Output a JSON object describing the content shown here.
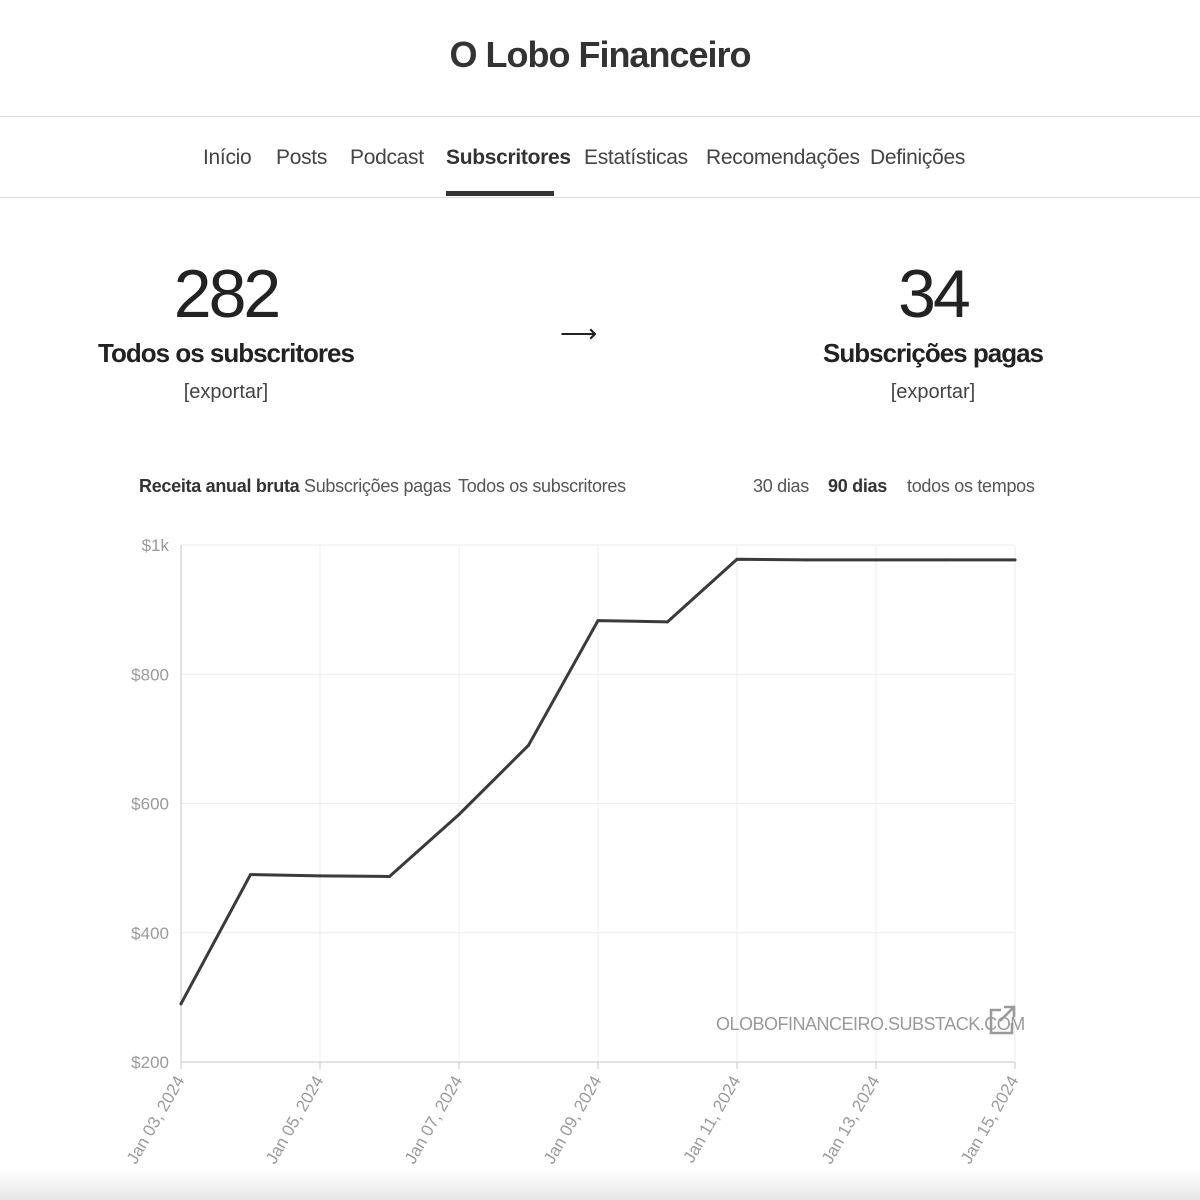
{
  "site": {
    "title": "O Lobo Financeiro"
  },
  "nav": {
    "items": [
      {
        "label": "Início"
      },
      {
        "label": "Posts"
      },
      {
        "label": "Podcast"
      },
      {
        "label": "Subscritores",
        "active": true
      },
      {
        "label": "Estatísticas"
      },
      {
        "label": "Recomendações"
      },
      {
        "label": "Definições"
      }
    ]
  },
  "stats": {
    "all": {
      "value": "282",
      "label": "Todos os subscritores",
      "export": "[exportar]"
    },
    "arrow": "⟶",
    "paid": {
      "value": "34",
      "label": "Subscrições pagas",
      "export": "[exportar]"
    }
  },
  "metric_tabs": [
    {
      "label": "Receita anual bruta",
      "active": true
    },
    {
      "label": "Subscrições pagas"
    },
    {
      "label": "Todos os subscritores"
    }
  ],
  "range_tabs": [
    {
      "label": "30 dias"
    },
    {
      "label": "90 dias",
      "active": true
    },
    {
      "label": "todos os tempos"
    }
  ],
  "chart_data": {
    "type": "line",
    "x_tick_labels": [
      "Jan 03, 2024",
      "Jan 05, 2024",
      "Jan 07, 2024",
      "Jan 09, 2024",
      "Jan 11, 2024",
      "Jan 13, 2024",
      "Jan 15, 2024"
    ],
    "y_tick_labels": [
      "$200",
      "$400",
      "$600",
      "$800",
      "$1k"
    ],
    "y_ticks": [
      200,
      400,
      600,
      800,
      1000
    ],
    "ylim": [
      200,
      1000
    ],
    "xlim": [
      "2024-01-03",
      "2024-01-15"
    ],
    "grid": true,
    "series": [
      {
        "color": "#3a3a3a",
        "points": [
          {
            "x": "2024-01-03",
            "y": 290
          },
          {
            "x": "2024-01-04",
            "y": 490
          },
          {
            "x": "2024-01-05",
            "y": 488
          },
          {
            "x": "2024-01-06",
            "y": 487
          },
          {
            "x": "2024-01-07",
            "y": 583
          },
          {
            "x": "2024-01-08",
            "y": 690
          },
          {
            "x": "2024-01-09",
            "y": 883
          },
          {
            "x": "2024-01-10",
            "y": 881
          },
          {
            "x": "2024-01-11",
            "y": 978
          },
          {
            "x": "2024-01-12",
            "y": 977
          },
          {
            "x": "2024-01-13",
            "y": 977
          },
          {
            "x": "2024-01-14",
            "y": 977
          },
          {
            "x": "2024-01-15",
            "y": 977
          }
        ]
      }
    ],
    "watermark": "OLOBOFINANCEIRO.SUBSTACK.COM"
  },
  "colors": {
    "text": "#2b2b2b",
    "line": "#3a3a3a",
    "grid": "#ececec",
    "axis_text": "#9a9a9a"
  },
  "icons": {
    "external": "external-link-icon"
  }
}
